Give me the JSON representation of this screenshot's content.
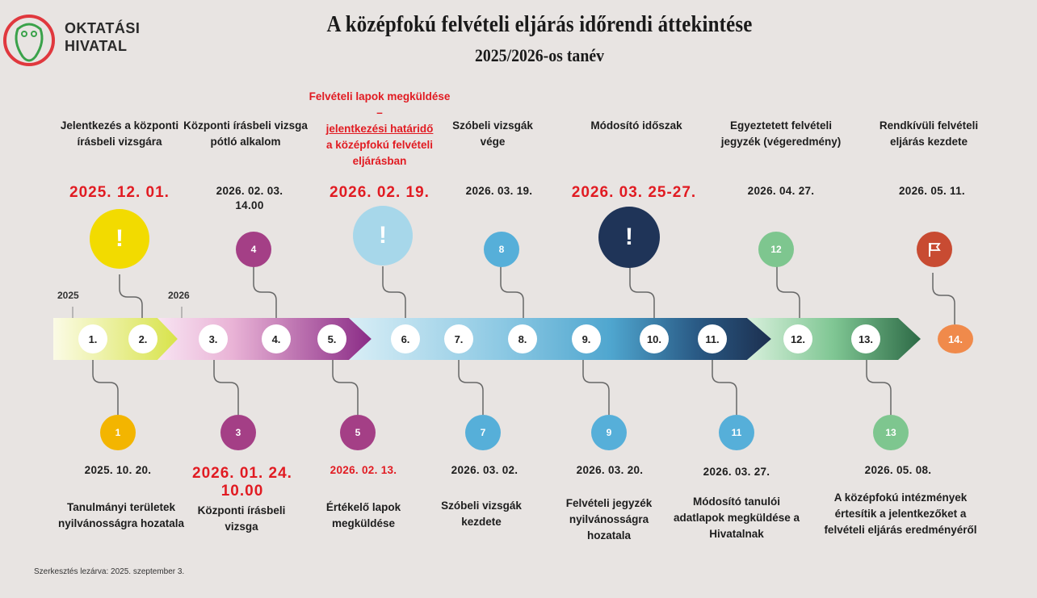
{
  "logo": {
    "line1": "OKTATÁSI",
    "line2": "HIVATAL",
    "ring_color": "#e0383e",
    "owl_color": "#3aa24a"
  },
  "header": {
    "title": "A középfokú felvételi eljárás időrendi áttekintése",
    "subtitle": "2025/2026-os tanév"
  },
  "years": {
    "y2025": "2025",
    "y2026": "2026"
  },
  "top_events": [
    {
      "label": "Jelentkezés a központi írásbeli vizsgára",
      "date": "2025. 12. 01.",
      "marker": "!",
      "color": "#f2db00"
    },
    {
      "label": "Központi írásbeli vizsga pótló alkalom",
      "date": "2026. 02. 03. 14.00",
      "marker": "4",
      "color": "#a43f86"
    },
    {
      "label_l1": "Felvételi lapok megküldése –",
      "label_l2": "jelentkezési határidő",
      "label_l3": "a középfokú felvételi eljárásban",
      "date": "2026. 02. 19.",
      "marker": "!",
      "color": "#a7d7ea"
    },
    {
      "label": "Szóbeli vizsgák vége",
      "date": "2026. 03. 19.",
      "marker": "8",
      "color": "#56afd9"
    },
    {
      "label": "Módosító időszak",
      "date": "2026. 03. 25-27.",
      "marker": "!",
      "color": "#1f3458"
    },
    {
      "label": "Egyeztetett felvételi jegyzék (végeredmény)",
      "date": "2026. 04. 27.",
      "marker": "12",
      "color": "#7ec68f"
    },
    {
      "label": "Rendkívüli felvételi eljárás kezdete",
      "date": "2026. 05. 11.",
      "marker": "flag-icon",
      "color": "#c84b32"
    }
  ],
  "bottom_events": [
    {
      "label": "Tanulmányi területek nyilvánosságra hozatala",
      "date": "2025. 10. 20.",
      "marker": "1",
      "color": "#f3b500"
    },
    {
      "label": "Központi írásbeli vizsga",
      "date": "2026. 01. 24. 10.00",
      "marker": "3",
      "color": "#a43f86"
    },
    {
      "label": "Értékelő lapok megküldése",
      "date": "2026. 02. 13.",
      "marker": "5",
      "color": "#a43f86"
    },
    {
      "label": "Szóbeli vizsgák kezdete",
      "date": "2026. 03. 02.",
      "marker": "7",
      "color": "#56afd9"
    },
    {
      "label": "Felvételi jegyzék nyilvánosságra hozatala",
      "date": "2026. 03. 20.",
      "marker": "9",
      "color": "#56afd9"
    },
    {
      "label": "Módosító tanulói adatlapok megküldése a Hivatalnak",
      "date": "2026. 03. 27.",
      "marker": "11",
      "color": "#56afd9"
    },
    {
      "label": "A középfokú intézmények értesítik a jelentkezőket a felvételi eljárás eredményéről",
      "date": "2026. 05. 08.",
      "marker": "13",
      "color": "#7ec68f"
    }
  ],
  "steps": [
    "1.",
    "2.",
    "3.",
    "4.",
    "5.",
    "6.",
    "7.",
    "8.",
    "9.",
    "10.",
    "11.",
    "12.",
    "13.",
    "14."
  ],
  "final_step_color": "#f08a4b",
  "footer": "Szerkesztés lezárva: 2025. szeptember 3."
}
